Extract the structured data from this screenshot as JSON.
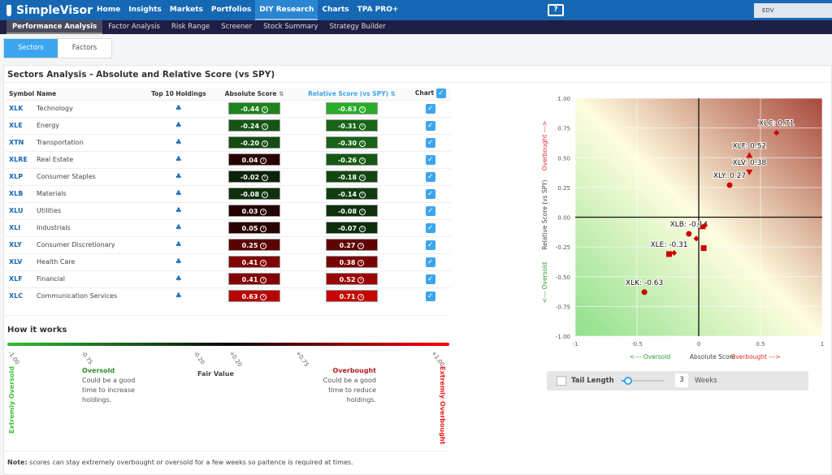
{
  "nav": {
    "brand": "SimpleVisor",
    "items": [
      "Home",
      "Insights",
      "Markets",
      "Portfolios",
      "DIY Research",
      "Charts",
      "TPA PRO+"
    ],
    "active": 4,
    "search_value": "EDV",
    "help_icon": "?"
  },
  "subnav": {
    "items": [
      "Performance Analysis",
      "Factor Analysis",
      "Risk Range",
      "Screener",
      "Stock Summary",
      "Strategy Builder"
    ],
    "active": 0
  },
  "tabs": [
    "Sectors",
    "Factors"
  ],
  "panel_title": "Sectors Analysis - Absolute and Relative Score (vs SPY)",
  "table": {
    "headers": {
      "symbol": "Symbol",
      "name": "Name",
      "holdings": "Top 10 Holdings",
      "abs": "Absolute Score",
      "rel": "Relative Score (vs SPY)",
      "chart": "Chart"
    },
    "rows": [
      {
        "symbol": "XLK",
        "name": "Technology",
        "abs": "-0.44",
        "rel": "-0.63"
      },
      {
        "symbol": "XLE",
        "name": "Energy",
        "abs": "-0.24",
        "rel": "-0.31"
      },
      {
        "symbol": "XTN",
        "name": "Transportation",
        "abs": "-0.20",
        "rel": "-0.30"
      },
      {
        "symbol": "XLRE",
        "name": "Real Estate",
        "abs": "0.04",
        "rel": "-0.26"
      },
      {
        "symbol": "XLP",
        "name": "Consumer Staples",
        "abs": "-0.02",
        "rel": "-0.18"
      },
      {
        "symbol": "XLB",
        "name": "Materials",
        "abs": "-0.08",
        "rel": "-0.14"
      },
      {
        "symbol": "XLU",
        "name": "Utilities",
        "abs": "0.03",
        "rel": "-0.08"
      },
      {
        "symbol": "XLI",
        "name": "Industrials",
        "abs": "0.05",
        "rel": "-0.07"
      },
      {
        "symbol": "XLY",
        "name": "Consumer Discretionary",
        "abs": "0.25",
        "rel": "0.27"
      },
      {
        "symbol": "XLV",
        "name": "Health Care",
        "abs": "0.41",
        "rel": "0.38"
      },
      {
        "symbol": "XLF",
        "name": "Financial",
        "abs": "0.41",
        "rel": "0.52"
      },
      {
        "symbol": "XLC",
        "name": "Communication Services",
        "abs": "0.63",
        "rel": "0.71"
      }
    ]
  },
  "how": {
    "title": "How it works",
    "ticks": [
      "-1.00",
      "-0.75",
      "-0.20",
      "+0.20",
      "+0.75",
      "+1.00"
    ],
    "extreme_oversold": "Extremly Oversold",
    "extreme_overbought": "Extremly Overbought",
    "oversold_title": "Oversold",
    "oversold_text": "Could be a good time to increase holdings.",
    "fair": "Fair Value",
    "overbought_title": "Overbought",
    "overbought_text": "Could be a good time to reduce holdings.",
    "note_label": "Note:",
    "note_text": " scores can stay extremely overbought or oversold for a few weeks so paitence is required at times."
  },
  "chart_data": {
    "type": "scatter",
    "xlabel": "Absolute Score",
    "ylabel": "Relative Score (vs SPY)",
    "x_oversold": "<--- Oversold",
    "x_overbought": "Overbought --->",
    "y_oversold": "<--- Oversold",
    "y_overbought": "Overbought --->",
    "xlim": [
      -1,
      1
    ],
    "ylim": [
      -1,
      1
    ],
    "xticks": [
      "-1",
      "-0.5",
      "0",
      "0.5",
      "1"
    ],
    "yticks": [
      "1.00",
      "0.75",
      "0.50",
      "0.25",
      "0.00",
      "-0.25",
      "-0.50",
      "-0.75",
      "-1.00"
    ],
    "points": [
      {
        "symbol": "XLK",
        "x": -0.44,
        "y": -0.63,
        "marker": "circle",
        "label": "XLK: -0.63"
      },
      {
        "symbol": "XLE",
        "x": -0.24,
        "y": -0.31,
        "marker": "square",
        "label": "XLE: -0.31"
      },
      {
        "symbol": "XTN",
        "x": -0.2,
        "y": -0.3,
        "marker": "diamond",
        "label": ""
      },
      {
        "symbol": "XLRE",
        "x": 0.04,
        "y": -0.26,
        "marker": "square",
        "label": ""
      },
      {
        "symbol": "XLP",
        "x": -0.02,
        "y": -0.18,
        "marker": "diamond",
        "label": ""
      },
      {
        "symbol": "XLB",
        "x": -0.08,
        "y": -0.14,
        "marker": "circle",
        "label": "XLB: -0.14"
      },
      {
        "symbol": "XLU",
        "x": 0.03,
        "y": -0.08,
        "marker": "triangle",
        "label": ""
      },
      {
        "symbol": "XLI",
        "x": 0.05,
        "y": -0.07,
        "marker": "diamond",
        "label": ""
      },
      {
        "symbol": "XLY",
        "x": 0.25,
        "y": 0.27,
        "marker": "circle",
        "label": "XLY: 0.27"
      },
      {
        "symbol": "XLV",
        "x": 0.41,
        "y": 0.38,
        "marker": "triangle-down",
        "label": "XLV: 0.38"
      },
      {
        "symbol": "XLF",
        "x": 0.41,
        "y": 0.52,
        "marker": "triangle",
        "label": "XLF: 0.52"
      },
      {
        "symbol": "XLC",
        "x": 0.63,
        "y": 0.71,
        "marker": "diamond",
        "label": "XLC: 0.71"
      }
    ]
  },
  "tail": {
    "label": "Tail Length",
    "value": "3",
    "unit": "Weeks",
    "slider_fraction": 0.15
  },
  "colors": {
    "marker": "#cc0000",
    "green": "#2e8b2e",
    "red": "#e02020"
  }
}
